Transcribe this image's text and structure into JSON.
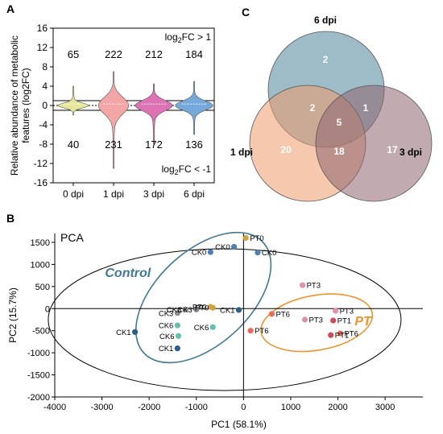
{
  "panels": {
    "a": {
      "letter": "A"
    },
    "b": {
      "letter": "B"
    },
    "c": {
      "letter": "C"
    }
  },
  "chart_data": [
    {
      "type": "violin",
      "panel": "A",
      "title": "",
      "xlabel": "",
      "ylabel": "Relative abundance of metabolic features (log2FC)",
      "ylabel_lines": [
        "Relative abundance of metabolic",
        "features (log2FC)"
      ],
      "categories": [
        "0 dpi",
        "1 dpi",
        "3 dpi",
        "6 dpi"
      ],
      "colors": [
        "#e6e79a",
        "#f2a6a6",
        "#dd72b4",
        "#74a9da"
      ],
      "up_counts": [
        "65",
        "222",
        "212",
        "184"
      ],
      "down_counts": [
        "40",
        "231",
        "172",
        "136"
      ],
      "approx_range": [
        [
          -2,
          4
        ],
        [
          -13,
          7
        ],
        [
          -8,
          4.5
        ],
        [
          -6,
          5
        ]
      ],
      "ylim": [
        -16,
        16
      ],
      "yticks": [
        -16,
        -12,
        -8,
        -4,
        0,
        4,
        8,
        12,
        16
      ],
      "threshold_lines": [
        1,
        -1
      ],
      "annotations": {
        "up": {
          "prefix": "log",
          "sub": "2",
          "suffix": "FC > 1"
        },
        "down": {
          "prefix": "log",
          "sub": "2",
          "suffix": "FC < -1"
        }
      }
    },
    {
      "type": "scatter",
      "panel": "B",
      "title": "PCA",
      "xlabel": "PC1 (58.1%)",
      "ylabel": "PC2 (15.7%)",
      "xlim": [
        -4000,
        3800
      ],
      "ylim": [
        -2000,
        1700
      ],
      "xticks": [
        -4000,
        -3000,
        -2000,
        -1000,
        0,
        1000,
        2000,
        3000
      ],
      "yticks": [
        -2000,
        -1500,
        -1000,
        -500,
        0,
        500,
        1000,
        1500
      ],
      "group_labels": [
        {
          "text": "Control",
          "color": "#3f7a91",
          "x": -2450,
          "y": 720
        },
        {
          "text": "PT",
          "color": "#f0922b",
          "x": 2530,
          "y": -380
        }
      ],
      "series": [
        {
          "name": "CK0",
          "color": "#4d7fb3",
          "points": [
            {
              "x": -700,
              "y": 1280,
              "label": "CK0"
            },
            {
              "x": -200,
              "y": 1400,
              "label": "CK0"
            },
            {
              "x": 300,
              "y": 1270,
              "label": "CK0"
            }
          ]
        },
        {
          "name": "CK1",
          "color": "#2e5f8a",
          "points": [
            {
              "x": -2300,
              "y": -530,
              "label": "CK1"
            },
            {
              "x": -1400,
              "y": -900,
              "label": "CK1"
            },
            {
              "x": -100,
              "y": -30,
              "label": "CK1"
            }
          ]
        },
        {
          "name": "CK3",
          "color": "#8a8a8a",
          "points": [
            {
              "x": -1400,
              "y": -100,
              "label": "CK3"
            },
            {
              "x": -1230,
              "y": -20,
              "label": "CK3"
            },
            {
              "x": -1000,
              "y": -20,
              "label": "CK3"
            }
          ]
        },
        {
          "name": "CK6",
          "color": "#63c1b0",
          "points": [
            {
              "x": -1400,
              "y": -380,
              "label": "CK6"
            },
            {
              "x": -1380,
              "y": -620,
              "label": "CK6"
            },
            {
              "x": -650,
              "y": -420,
              "label": "CK6"
            }
          ]
        },
        {
          "name": "PT0",
          "color": "#d3a23f",
          "points": [
            {
              "x": 50,
              "y": 1600,
              "label": "PT0"
            },
            {
              "x": -700,
              "y": 40,
              "label": "PT0"
            },
            {
              "x": -650,
              "y": 20,
              "label": "PT0"
            }
          ]
        },
        {
          "name": "PT1",
          "color": "#d04a5a",
          "points": [
            {
              "x": 1900,
              "y": -270,
              "label": "PT1"
            },
            {
              "x": 1850,
              "y": -600,
              "label": "PT1"
            }
          ]
        },
        {
          "name": "PT3",
          "color": "#e28fb1",
          "points": [
            {
              "x": 1250,
              "y": 530,
              "label": "PT3"
            },
            {
              "x": 1950,
              "y": -50,
              "label": "PT3"
            },
            {
              "x": 1300,
              "y": -250,
              "label": "PT3"
            }
          ]
        },
        {
          "name": "PT6",
          "color": "#ec6a5a",
          "points": [
            {
              "x": 600,
              "y": -120,
              "label": "PT6"
            },
            {
              "x": 150,
              "y": -500,
              "label": "PT6"
            },
            {
              "x": 2050,
              "y": -560,
              "label": "PT6"
            }
          ]
        }
      ]
    },
    {
      "type": "venn",
      "panel": "C",
      "sets": [
        {
          "name": "6 dpi",
          "color": "#4d8599"
        },
        {
          "name": "1 dpi",
          "color": "#ef9a6c"
        },
        {
          "name": "3 dpi",
          "color": "#8e6570"
        }
      ],
      "regions": [
        {
          "sets": [
            "6 dpi"
          ],
          "value": "2"
        },
        {
          "sets": [
            "1 dpi",
            "6 dpi"
          ],
          "value": "2"
        },
        {
          "sets": [
            "6 dpi",
            "3 dpi"
          ],
          "value": "1"
        },
        {
          "sets": [
            "1 dpi",
            "6 dpi",
            "3 dpi"
          ],
          "value": "5"
        },
        {
          "sets": [
            "1 dpi"
          ],
          "value": "20"
        },
        {
          "sets": [
            "1 dpi",
            "3 dpi"
          ],
          "value": "18"
        },
        {
          "sets": [
            "3 dpi"
          ],
          "value": "17"
        }
      ]
    }
  ]
}
